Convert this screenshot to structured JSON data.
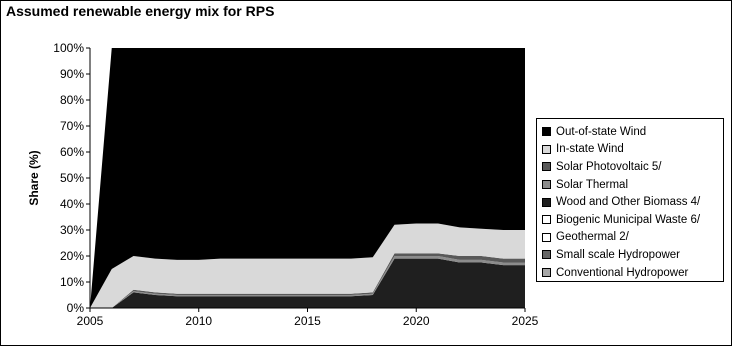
{
  "chart_data": {
    "type": "area",
    "stacked": true,
    "title": "Assumed renewable energy mix for RPS",
    "ylabel": "Share (%)",
    "xlabel": "",
    "x": [
      2005,
      2006,
      2007,
      2008,
      2009,
      2010,
      2011,
      2012,
      2013,
      2014,
      2015,
      2016,
      2017,
      2018,
      2019,
      2020,
      2021,
      2022,
      2023,
      2024,
      2025
    ],
    "xlim": [
      2005,
      2025
    ],
    "ylim": [
      0,
      100
    ],
    "xticks": [
      "2005",
      "2010",
      "2015",
      "2020",
      "2025"
    ],
    "yticks": [
      "0%",
      "10%",
      "20%",
      "30%",
      "40%",
      "50%",
      "60%",
      "70%",
      "80%",
      "90%",
      "100%"
    ],
    "grid": false,
    "legend_position": "right",
    "series": [
      {
        "name": "Conventional Hydropower",
        "color": "#a6a6a6",
        "values": [
          0,
          0,
          0,
          0,
          0,
          0,
          0,
          0,
          0,
          0,
          0,
          0,
          0,
          0,
          0,
          0,
          0,
          0,
          0,
          0,
          0
        ]
      },
      {
        "name": "Small scale Hydropower",
        "color": "#666666",
        "values": [
          0,
          0,
          0,
          0,
          0,
          0,
          0,
          0,
          0,
          0,
          0,
          0,
          0,
          0,
          0,
          0,
          0,
          0,
          0,
          0,
          0
        ]
      },
      {
        "name": "Geothermal 2/",
        "color": "#ffffff",
        "values": [
          0,
          0,
          0,
          0,
          0,
          0,
          0,
          0,
          0,
          0,
          0,
          0,
          0,
          0,
          0,
          0,
          0,
          0,
          0,
          0,
          0
        ]
      },
      {
        "name": "Biogenic Municipal Waste 6/",
        "color": "#ffffff",
        "values": [
          0,
          0,
          0,
          0,
          0,
          0,
          0,
          0,
          0,
          0,
          0,
          0,
          0,
          0,
          0,
          0,
          0,
          0,
          0,
          0,
          0
        ]
      },
      {
        "name": "Wood and Other Biomass 4/",
        "color": "#1f1f1f",
        "values": [
          0,
          0,
          6,
          5,
          4.5,
          4.5,
          4.5,
          4.5,
          4.5,
          4.5,
          4.5,
          4.5,
          4.5,
          5,
          19,
          19,
          19,
          17.5,
          17.5,
          16.5,
          16.5
        ]
      },
      {
        "name": "Solar Thermal",
        "color": "#8c8c8c",
        "values": [
          0,
          0,
          0.5,
          0.5,
          0.5,
          0.5,
          0.5,
          0.5,
          0.5,
          0.5,
          0.5,
          0.5,
          0.5,
          0.5,
          1,
          1,
          1,
          1,
          1,
          1,
          1
        ]
      },
      {
        "name": "Solar Photovoltaic 5/",
        "color": "#595959",
        "values": [
          0,
          0,
          0.5,
          0.5,
          0.5,
          0.5,
          0.5,
          0.5,
          0.5,
          0.5,
          0.5,
          0.5,
          0.5,
          0.5,
          1,
          1,
          1,
          1.5,
          1.5,
          1.5,
          1.5
        ]
      },
      {
        "name": "In-state Wind",
        "color": "#d9d9d9",
        "values": [
          0,
          15,
          13,
          13,
          13,
          13,
          13.5,
          13.5,
          13.5,
          13.5,
          13.5,
          13.5,
          13.5,
          13.5,
          11,
          11.5,
          11.5,
          11,
          10.5,
          11,
          11
        ]
      },
      {
        "name": "Out-of-state Wind",
        "color": "#000000",
        "values": [
          0,
          85,
          80,
          81,
          81.5,
          81.5,
          81,
          81,
          81,
          81,
          81,
          81,
          81,
          80.5,
          68,
          67.5,
          67.5,
          69,
          69.5,
          70,
          70
        ]
      }
    ],
    "legend_order": [
      "Out-of-state Wind",
      "In-state Wind",
      "Solar Photovoltaic 5/",
      "Solar Thermal",
      "Wood and Other Biomass 4/",
      "Biogenic Municipal Waste 6/",
      "Geothermal 2/",
      "Small scale Hydropower",
      "Conventional Hydropower"
    ]
  }
}
